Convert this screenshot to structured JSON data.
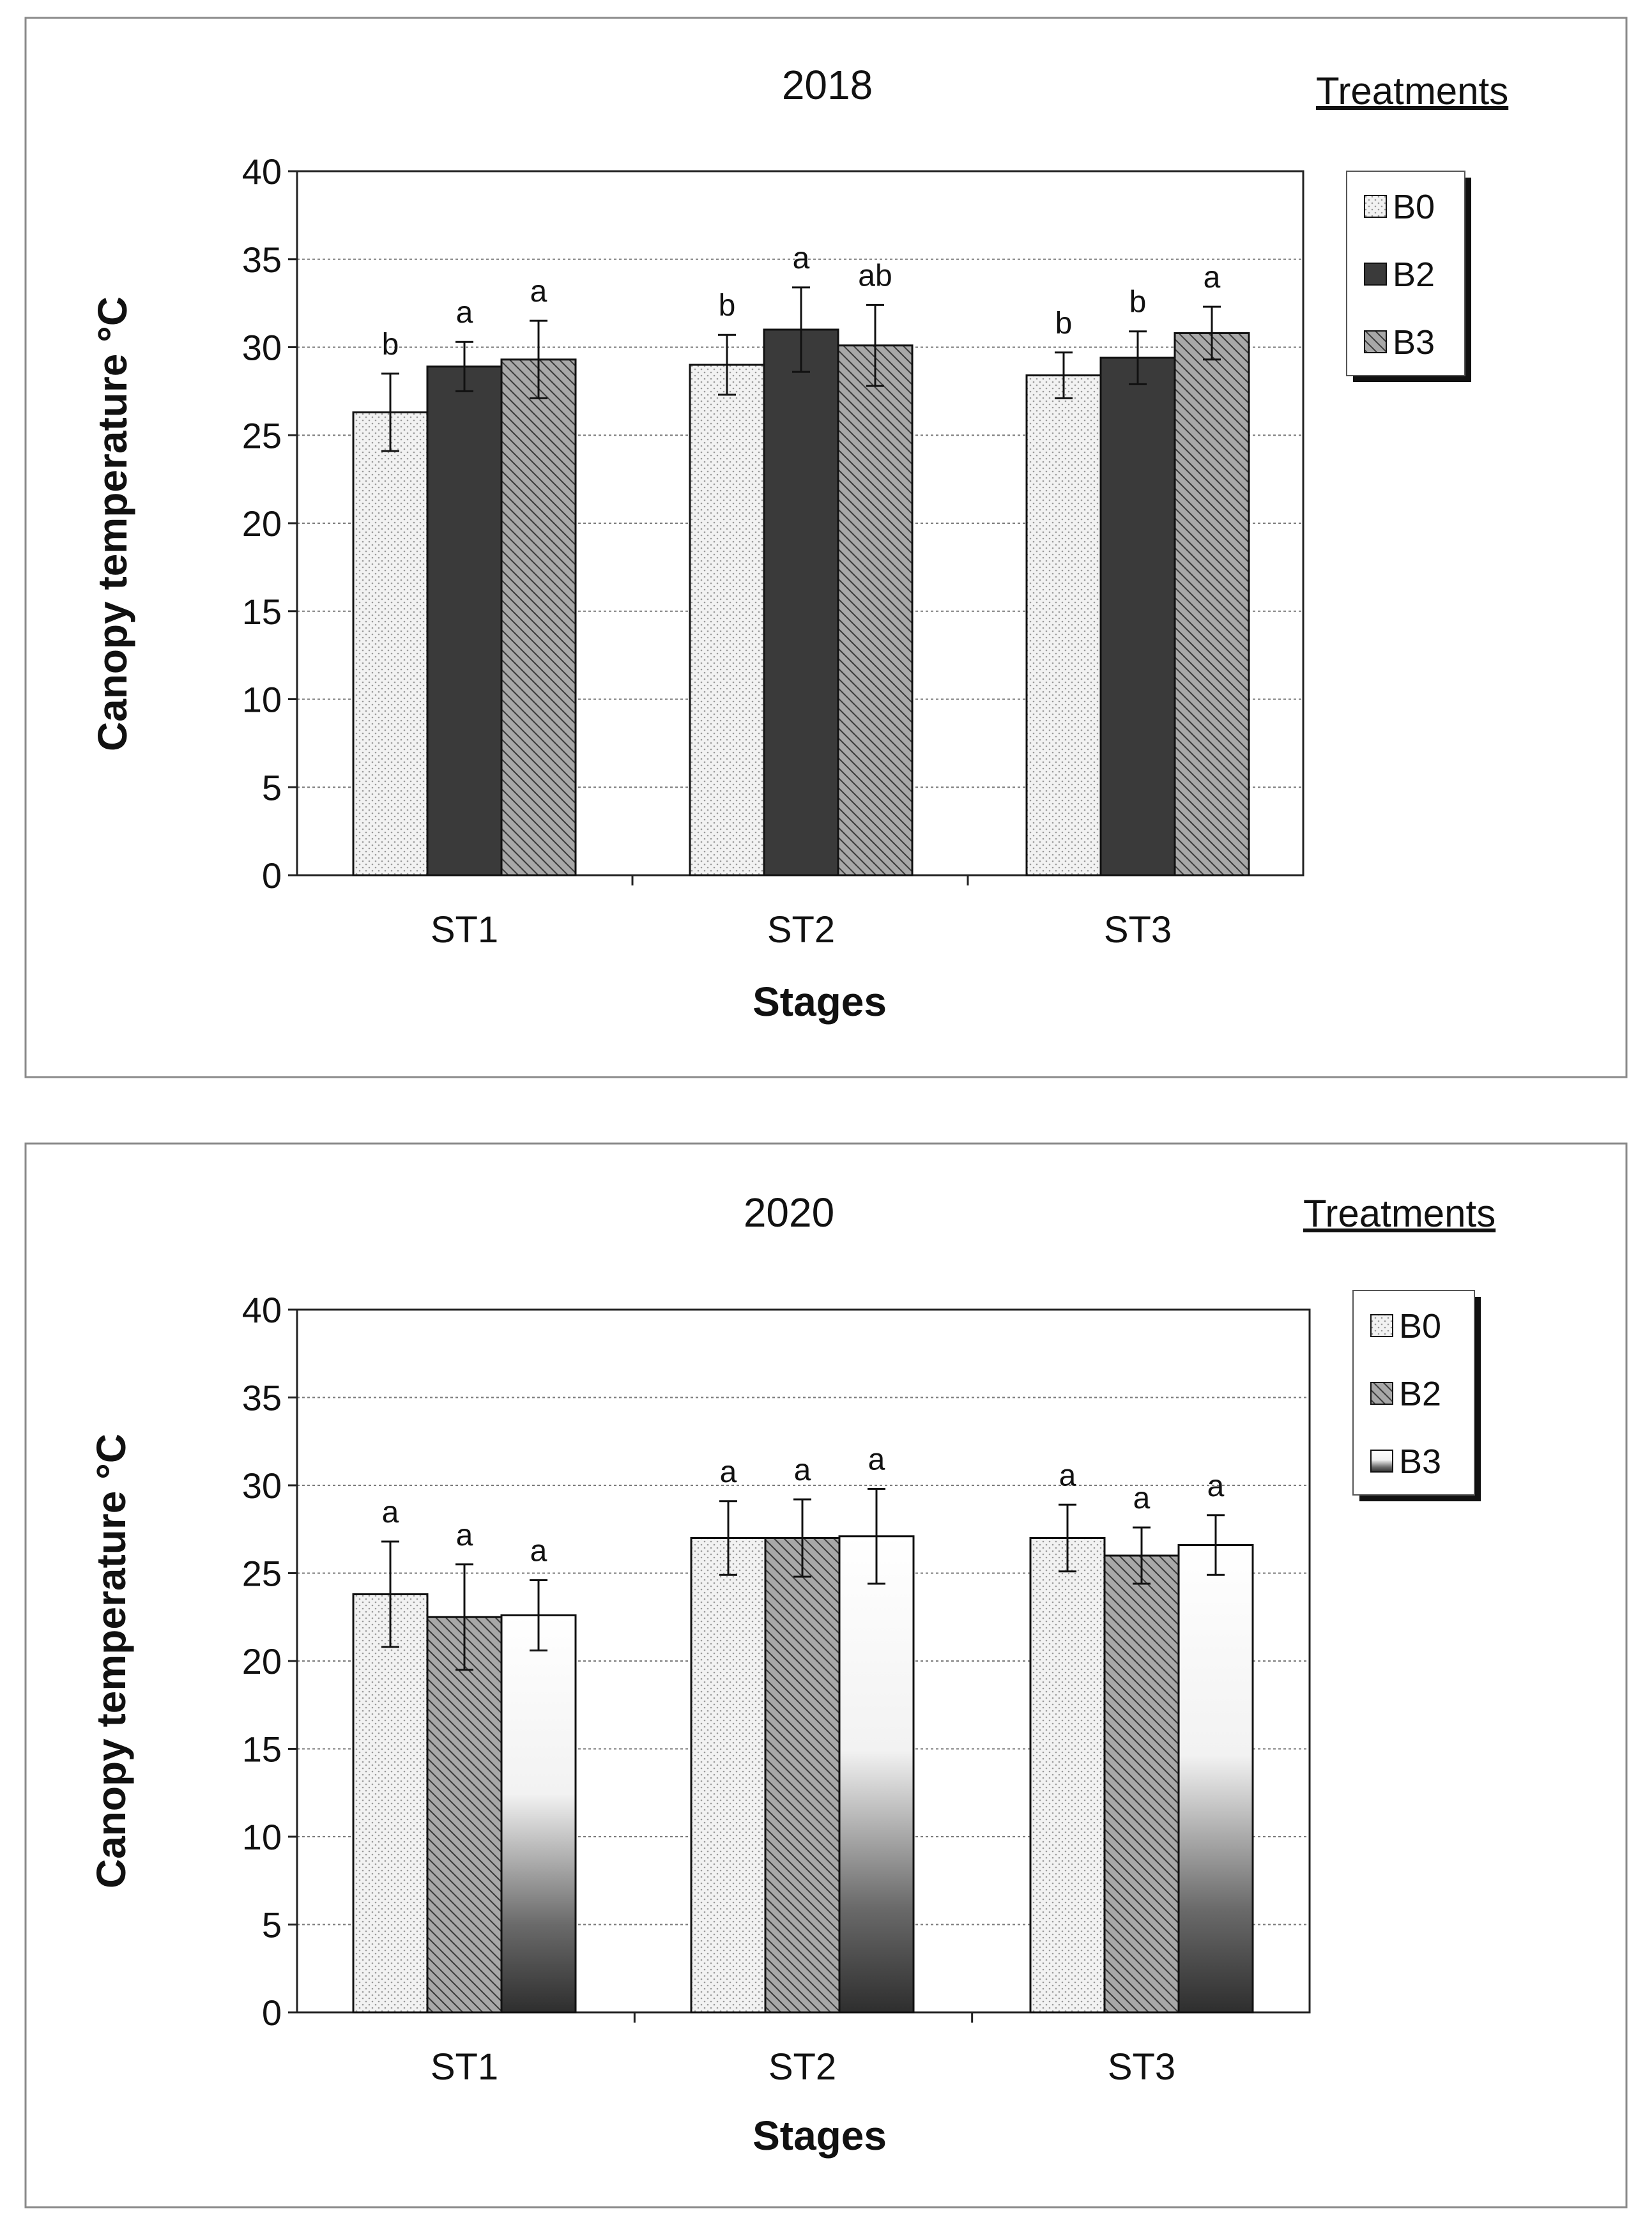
{
  "chart_data": [
    {
      "type": "bar",
      "title": "2018",
      "xlabel": "Stages",
      "ylabel": "Canopy temperature °C",
      "ylim": [
        0,
        40
      ],
      "yticks": [
        0,
        5,
        10,
        15,
        20,
        25,
        30,
        35,
        40
      ],
      "categories": [
        "ST1",
        "ST2",
        "ST3"
      ],
      "legend_title": "Treatments",
      "legend_position": "right",
      "grid": true,
      "series": [
        {
          "name": "B0",
          "pattern": "dots",
          "values": [
            26.3,
            29.0,
            28.4
          ],
          "errors": [
            2.2,
            1.7,
            1.3
          ],
          "letters": [
            "b",
            "b",
            "b"
          ]
        },
        {
          "name": "B2",
          "pattern": "dark",
          "values": [
            28.9,
            31.0,
            29.4
          ],
          "errors": [
            1.4,
            2.4,
            1.5
          ],
          "letters": [
            "a",
            "a",
            "b"
          ]
        },
        {
          "name": "B3",
          "pattern": "hatch",
          "values": [
            29.3,
            30.1,
            30.8
          ],
          "errors": [
            2.2,
            2.3,
            1.5
          ],
          "letters": [
            "a",
            "ab",
            "a"
          ]
        }
      ]
    },
    {
      "type": "bar",
      "title": "2020",
      "xlabel": "Stages",
      "ylabel": "Canopy temperature °C",
      "ylim": [
        0,
        40
      ],
      "yticks": [
        0,
        5,
        10,
        15,
        20,
        25,
        30,
        35,
        40
      ],
      "categories": [
        "ST1",
        "ST2",
        "ST3"
      ],
      "legend_title": "Treatments",
      "legend_position": "right",
      "grid": true,
      "series": [
        {
          "name": "B0",
          "pattern": "dots",
          "values": [
            23.8,
            27.0,
            27.0
          ],
          "errors": [
            3.0,
            2.1,
            1.9
          ],
          "letters": [
            "a",
            "a",
            "a"
          ]
        },
        {
          "name": "B2",
          "pattern": "hatch",
          "values": [
            22.5,
            27.0,
            26.0
          ],
          "errors": [
            3.0,
            2.2,
            1.6
          ],
          "letters": [
            "a",
            "a",
            "a"
          ]
        },
        {
          "name": "B3",
          "pattern": "gradient",
          "values": [
            22.6,
            27.1,
            26.6
          ],
          "errors": [
            2.0,
            2.7,
            1.7
          ],
          "letters": [
            "a",
            "a",
            "a"
          ]
        }
      ]
    }
  ]
}
